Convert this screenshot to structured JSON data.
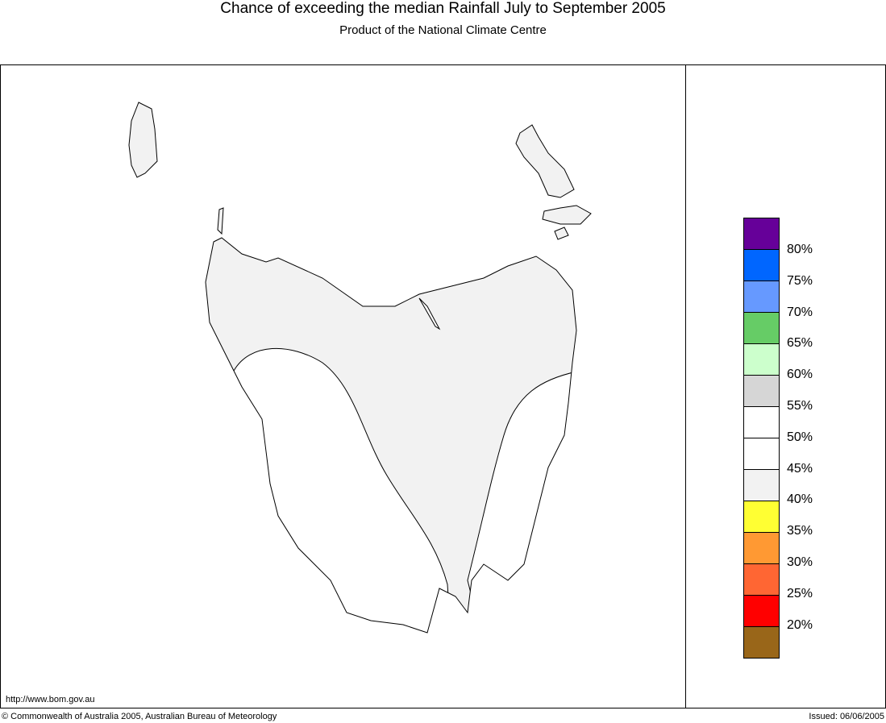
{
  "title": "Chance of exceeding the median Rainfall July to September 2005",
  "subtitle": "Product of the National Climate Centre",
  "footer": {
    "url": "http://www.bom.gov.au",
    "copyright": "© Commonwealth of Australia 2005, Australian Bureau of Meteorology",
    "issued": "Issued: 06/06/2005"
  },
  "map": {
    "region": "Tasmania",
    "category_colors": {
      "40-45%": "#f2f2f2",
      "45-55%": "#ffffff"
    }
  },
  "legend": {
    "colors": [
      "#660099",
      "#0066ff",
      "#6699ff",
      "#66cc66",
      "#ccffcc",
      "#d6d6d6",
      "#ffffff",
      "#ffffff",
      "#f2f2f2",
      "#ffff33",
      "#ff9933",
      "#ff6633",
      "#ff0000",
      "#996619"
    ],
    "labels": [
      "80%",
      "75%",
      "70%",
      "65%",
      "60%",
      "55%",
      "50%",
      "45%",
      "40%",
      "35%",
      "30%",
      "25%",
      "20%"
    ]
  }
}
